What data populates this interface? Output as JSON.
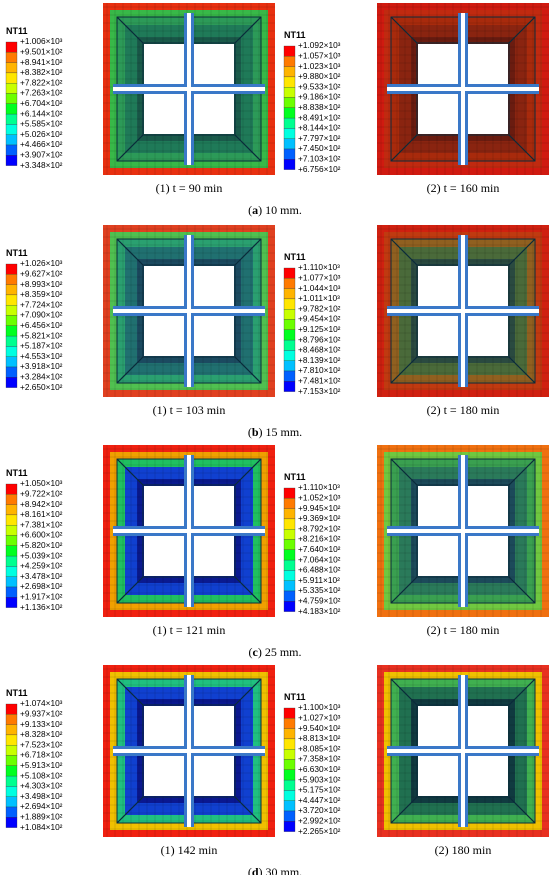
{
  "panels": [
    {
      "legend_title": "NT11",
      "caption": "(1) t = 90 min",
      "labels": [
        "+1.006×10³",
        "+9.501×10²",
        "+8.941×10²",
        "+8.382×10²",
        "+7.822×10²",
        "+7.263×10²",
        "+6.704×10²",
        "+6.144×10²",
        "+5.585×10²",
        "+5.026×10²",
        "+4.466×10²",
        "+3.907×10²",
        "+3.348×10²"
      ]
    },
    {
      "legend_title": "NT11",
      "caption": "(2) t = 160 min",
      "labels": [
        "+1.092×10³",
        "+1.057×10³",
        "+1.023×10³",
        "+9.880×10²",
        "+9.533×10²",
        "+9.186×10²",
        "+8.838×10²",
        "+8.491×10²",
        "+8.144×10²",
        "+7.797×10²",
        "+7.450×10²",
        "+7.103×10²",
        "+6.756×10²"
      ]
    },
    {
      "legend_title": "NT11",
      "caption": "(1) t = 103 min",
      "labels": [
        "+1.026×10³",
        "+9.627×10²",
        "+8.993×10²",
        "+8.359×10²",
        "+7.724×10²",
        "+7.090×10²",
        "+6.456×10²",
        "+5.821×10²",
        "+5.187×10²",
        "+4.553×10²",
        "+3.918×10²",
        "+3.284×10²",
        "+2.650×10²"
      ]
    },
    {
      "legend_title": "NT11",
      "caption": "(2) t = 180 min",
      "labels": [
        "+1.110×10³",
        "+1.077×10³",
        "+1.044×10³",
        "+1.011×10³",
        "+9.782×10²",
        "+9.454×10²",
        "+9.125×10²",
        "+8.796×10²",
        "+8.468×10²",
        "+8.139×10²",
        "+7.810×10²",
        "+7.481×10²",
        "+7.153×10²"
      ]
    },
    {
      "legend_title": "NT11",
      "caption": "(1) t = 121 min",
      "labels": [
        "+1.050×10³",
        "+9.722×10²",
        "+8.942×10²",
        "+8.161×10²",
        "+7.381×10²",
        "+6.600×10²",
        "+5.820×10²",
        "+5.039×10²",
        "+4.259×10²",
        "+3.478×10²",
        "+2.698×10²",
        "+1.917×10²",
        "+1.136×10²"
      ]
    },
    {
      "legend_title": "NT11",
      "caption": "(2) t = 180 min",
      "labels": [
        "+1.110×10³",
        "+1.052×10³",
        "+9.945×10²",
        "+9.369×10²",
        "+8.792×10²",
        "+8.216×10²",
        "+7.640×10²",
        "+7.064×10²",
        "+6.488×10²",
        "+5.911×10²",
        "+5.335×10²",
        "+4.759×10²",
        "+4.183×10²"
      ]
    },
    {
      "legend_title": "NT11",
      "caption": "(1) 142 min",
      "labels": [
        "+1.074×10³",
        "+9.937×10²",
        "+9.133×10²",
        "+8.328×10²",
        "+7.523×10²",
        "+6.718×10²",
        "+5.913×10²",
        "+5.108×10²",
        "+4.303×10²",
        "+3.498×10²",
        "+2.694×10²",
        "+1.889×10²",
        "+1.084×10²"
      ]
    },
    {
      "legend_title": "NT11",
      "caption": "(2) 180 min",
      "labels": [
        "+1.100×10³",
        "+1.027×10³",
        "+9.540×10²",
        "+8.813×10²",
        "+8.085×10²",
        "+7.358×10²",
        "+6.630×10²",
        "+5.903×10²",
        "+5.175×10²",
        "+4.447×10²",
        "+3.720×10²",
        "+2.992×10²",
        "+2.265×10²"
      ]
    }
  ],
  "groups": [
    {
      "parts": [
        "(",
        "a",
        ") 10 mm."
      ]
    },
    {
      "parts": [
        "(",
        "b",
        ") 15 mm."
      ]
    },
    {
      "parts": [
        "(",
        "c",
        ") 25 mm."
      ]
    },
    {
      "parts": [
        "(",
        "d",
        ") 30 mm."
      ]
    }
  ]
}
